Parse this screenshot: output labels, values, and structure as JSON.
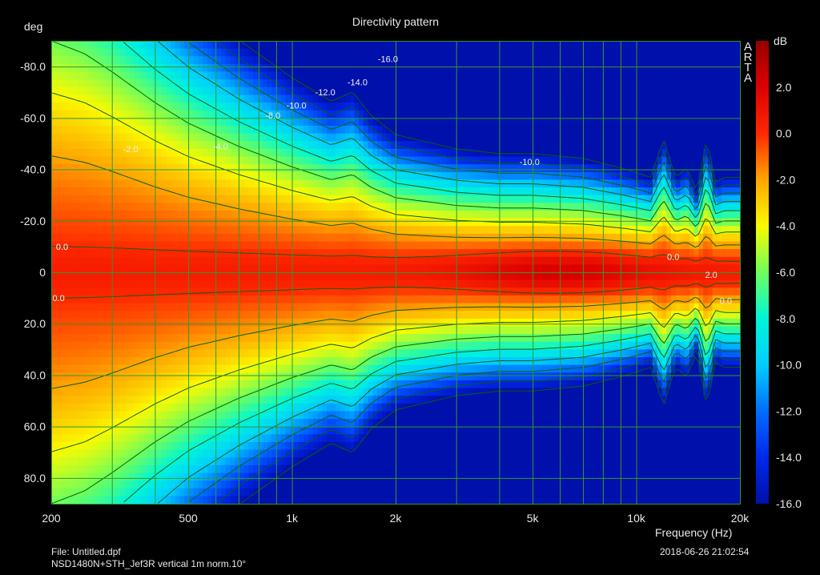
{
  "header": {
    "title": "Directivity pattern"
  },
  "footer": {
    "file": "File: Untitled.dpf",
    "description": "NSD1480N+STH_Jef3R vertical 1m norm.10°",
    "timestamp": "2018-06-26  21:02:54"
  },
  "brand": [
    "A",
    "R",
    "T",
    "A"
  ],
  "colors": {
    "background": "#000000",
    "grid": "#2f9a2f",
    "contour": "#0b5e0b",
    "text": "#e8e8e8"
  },
  "chart_data": {
    "type": "heatmap",
    "title": "Directivity pattern",
    "xlabel": "Frequency (Hz)",
    "ylabel": "deg",
    "zlabel": "dB",
    "x_scale": "log",
    "xlim": [
      200,
      20000
    ],
    "ylim": [
      -90,
      90
    ],
    "zlim": [
      -16,
      4
    ],
    "x_ticks": [
      {
        "value": 200,
        "label": "200"
      },
      {
        "value": 500,
        "label": "500"
      },
      {
        "value": 1000,
        "label": "1k"
      },
      {
        "value": 2000,
        "label": "2k"
      },
      {
        "value": 5000,
        "label": "5k"
      },
      {
        "value": 10000,
        "label": "10k"
      },
      {
        "value": 20000,
        "label": "20k"
      }
    ],
    "y_ticks": [
      {
        "value": -80,
        "label": "-80.0"
      },
      {
        "value": -60,
        "label": "-60.0"
      },
      {
        "value": -40,
        "label": "-40.0"
      },
      {
        "value": -20,
        "label": "-20.0"
      },
      {
        "value": 0,
        "label": "0"
      },
      {
        "value": 20,
        "label": "20.0"
      },
      {
        "value": 40,
        "label": "40.0"
      },
      {
        "value": 60,
        "label": "60.0"
      },
      {
        "value": 80,
        "label": "80.0"
      }
    ],
    "z_ticks": [
      {
        "value": 2,
        "label": "2.0"
      },
      {
        "value": 0,
        "label": "0.0"
      },
      {
        "value": -2,
        "label": "-2.0"
      },
      {
        "value": -4,
        "label": "-4.0"
      },
      {
        "value": -6,
        "label": "-6.0"
      },
      {
        "value": -8,
        "label": "-8.0"
      },
      {
        "value": -10,
        "label": "-10.0"
      },
      {
        "value": -12,
        "label": "-12.0"
      },
      {
        "value": -14,
        "label": "-14.0"
      },
      {
        "value": -16,
        "label": "-16.0"
      }
    ],
    "contour_levels": [
      0,
      -2,
      -4,
      -6,
      -8,
      -10,
      -12,
      -14,
      -16
    ],
    "beamwidth_model": {
      "frequencies": [
        200,
        250,
        300,
        400,
        500,
        700,
        1000,
        1300,
        1500,
        1700,
        2000,
        3000,
        4000,
        5000,
        7000,
        9000,
        10000,
        11000,
        12000,
        13000,
        14000,
        15000,
        16000,
        17000,
        18000,
        20000
      ],
      "minus6db_angle_deg": [
        90,
        85,
        78,
        66,
        58,
        49,
        41,
        36,
        38,
        33,
        29,
        26,
        25,
        25,
        24,
        22,
        21,
        20,
        28,
        20,
        22,
        17,
        28,
        19,
        20,
        20
      ],
      "grid_spec": "0.6-rainbow"
    },
    "contour_labels": [
      {
        "freq": 215,
        "angle": -10,
        "label": "0.0"
      },
      {
        "freq": 210,
        "angle": 10,
        "label": "0.0"
      },
      {
        "freq": 12800,
        "angle": -6,
        "label": "0.0"
      },
      {
        "freq": 16500,
        "angle": 1,
        "label": "2.0"
      },
      {
        "freq": 18200,
        "angle": 11,
        "label": "0.0"
      },
      {
        "freq": 340,
        "angle": -48,
        "label": "-2.0"
      },
      {
        "freq": 620,
        "angle": -49,
        "label": "-4.0"
      },
      {
        "freq": 880,
        "angle": -61,
        "label": "-8.0"
      },
      {
        "freq": 1030,
        "angle": -65,
        "label": "-10.0"
      },
      {
        "freq": 1250,
        "angle": -70,
        "label": "-12.0"
      },
      {
        "freq": 1550,
        "angle": -74,
        "label": "-14.0"
      },
      {
        "freq": 1900,
        "angle": -83,
        "label": "-16.0"
      },
      {
        "freq": 4900,
        "angle": -43,
        "label": "-10.0"
      }
    ]
  }
}
